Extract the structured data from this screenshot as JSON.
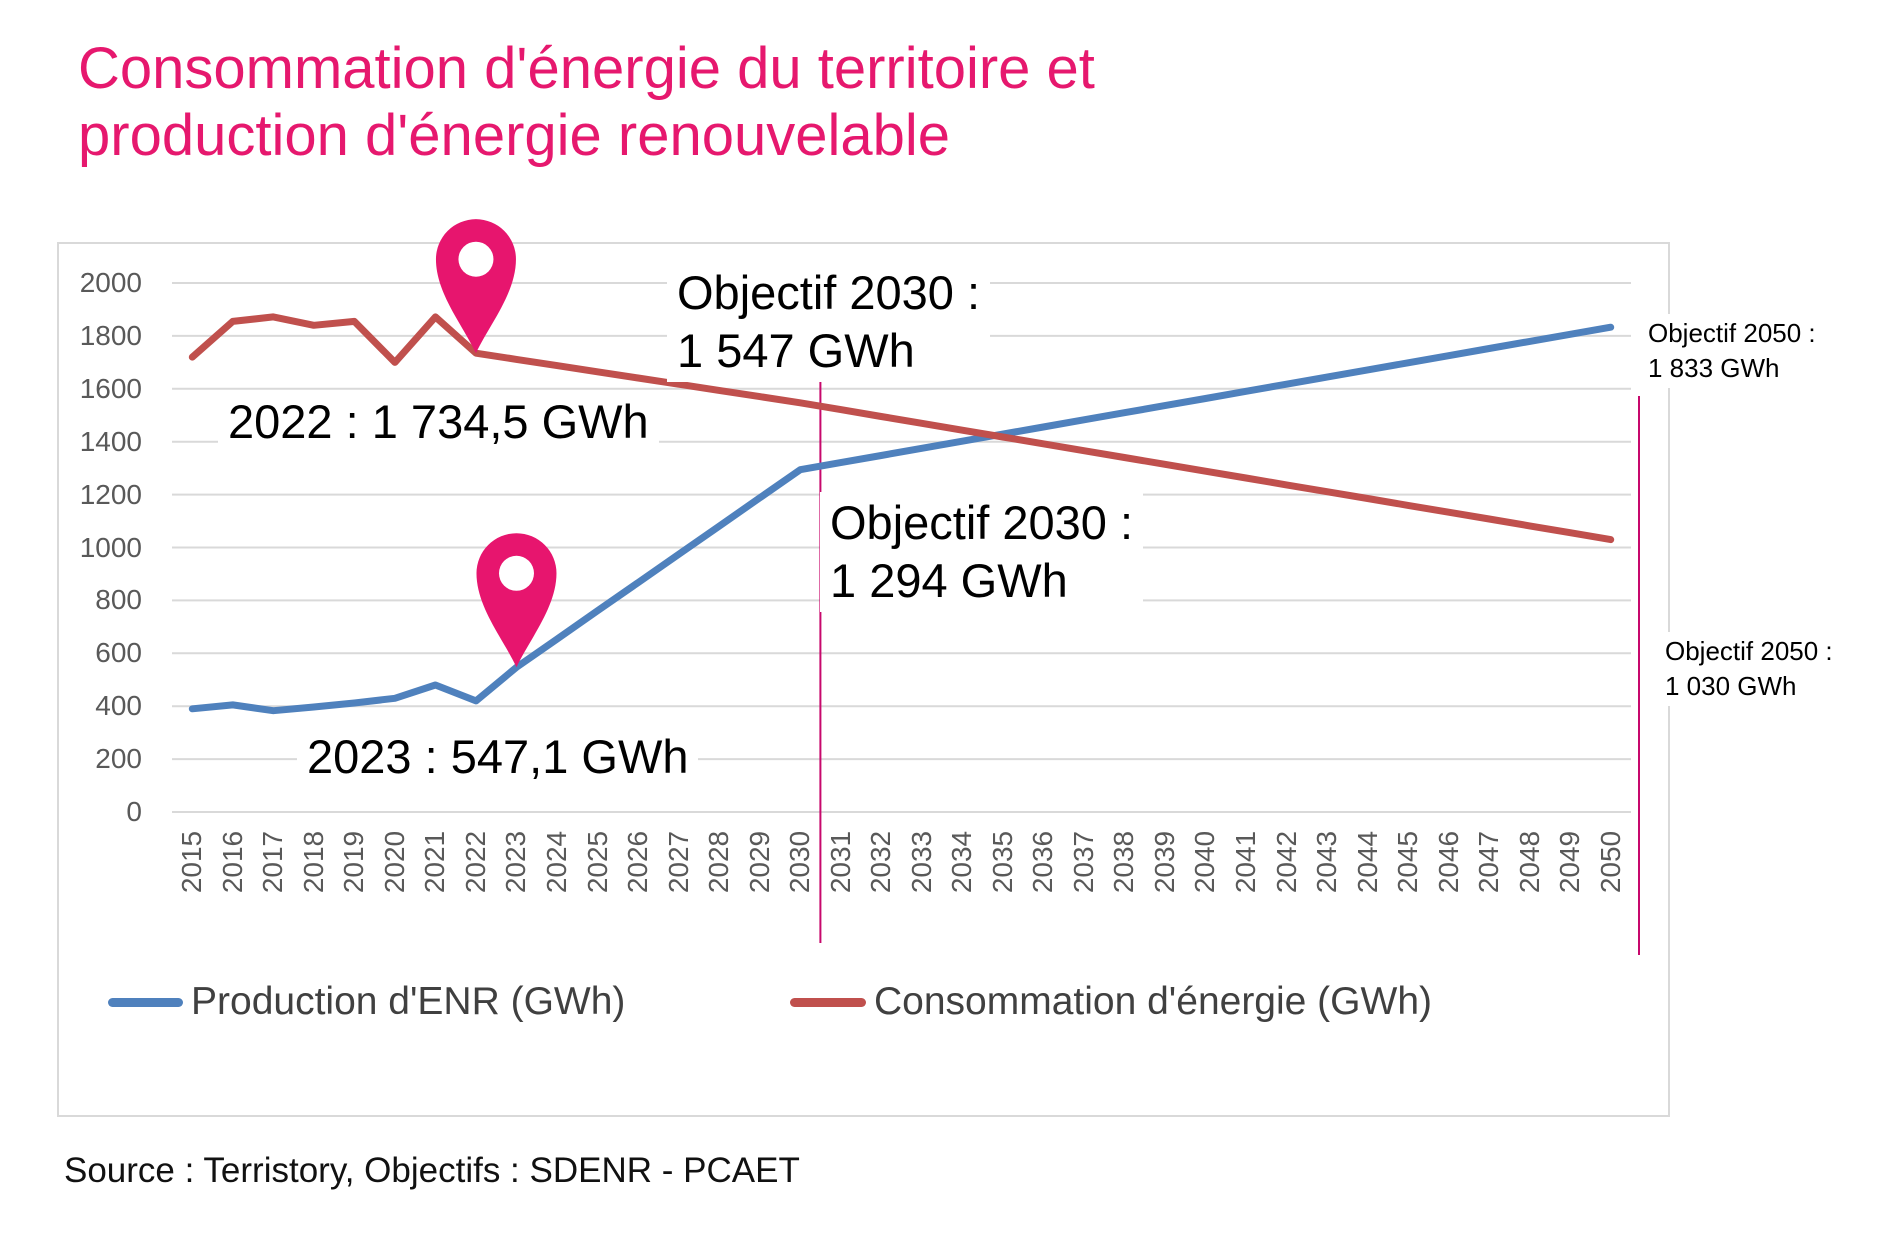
{
  "title": {
    "line1": "Consommation d'énergie du territoire et",
    "line2": "production d'énergie renouvelable"
  },
  "source": "Source : Terristory, Objectifs : SDENR - PCAET",
  "colors": {
    "title_accent": "#e6186e",
    "marker_pin": "#e7156e",
    "reference_line": "#c7086c",
    "gridline": "#d9d9d9",
    "axis_text": "#595959",
    "legend_text": "#404040"
  },
  "legend": [
    {
      "label": "Production d'ENR (GWh)",
      "color": "#4f81bd"
    },
    {
      "label": "Consommation d'énergie (GWh)",
      "color": "#c0504d"
    }
  ],
  "chart_data": {
    "type": "line",
    "x": [
      2015,
      2016,
      2017,
      2018,
      2019,
      2020,
      2021,
      2022,
      2023,
      2024,
      2025,
      2026,
      2027,
      2028,
      2029,
      2030,
      2031,
      2032,
      2033,
      2034,
      2035,
      2036,
      2037,
      2038,
      2039,
      2040,
      2041,
      2042,
      2043,
      2044,
      2045,
      2046,
      2047,
      2048,
      2049,
      2050
    ],
    "series": [
      {
        "key": "production",
        "name": "Production d'ENR (GWh)",
        "color": "#4f81bd",
        "values": [
          390,
          405,
          383,
          397,
          412,
          430,
          480,
          420,
          547.1,
          653.8,
          760.5,
          867.2,
          973.9,
          1080.7,
          1187.4,
          1294,
          1321,
          1347.9,
          1374.9,
          1401.8,
          1428.8,
          1455.7,
          1482.7,
          1509.6,
          1536.6,
          1563.5,
          1590.5,
          1617.4,
          1644.4,
          1671.3,
          1698.3,
          1725.2,
          1752.2,
          1779.1,
          1806.1,
          1833
        ]
      },
      {
        "key": "consommation",
        "name": "Consommation d'énergie (GWh)",
        "color": "#c0504d",
        "values": [
          1720,
          1855,
          1872,
          1840,
          1855,
          1700,
          1872,
          1734.5,
          1711.1,
          1687.6,
          1664.2,
          1640.8,
          1617.3,
          1593.9,
          1570.4,
          1547,
          1521.2,
          1495.3,
          1469.5,
          1443.6,
          1417.8,
          1391.9,
          1366.1,
          1340.2,
          1314.4,
          1288.5,
          1262.7,
          1236.8,
          1211,
          1185.1,
          1159.3,
          1133.4,
          1107.6,
          1081.7,
          1055.9,
          1030
        ]
      }
    ],
    "ylim": [
      0,
      2000
    ],
    "yticks": [
      0,
      200,
      400,
      600,
      800,
      1000,
      1200,
      1400,
      1600,
      1800,
      2000
    ],
    "grid": "horizontal",
    "legend_position": "bottom-inside",
    "markers": [
      {
        "series": "consommation",
        "year": 2022
      },
      {
        "series": "production",
        "year": 2023
      }
    ],
    "reference_lines": [
      {
        "id": "objective-2030",
        "after_year": 2030
      },
      {
        "id": "objective-2050",
        "after_year": 2050
      }
    ],
    "annotations": {
      "cons_2022": {
        "text": "2022 : 1 734,5 GWh"
      },
      "prod_2023": {
        "text": "2023 : 547,1 GWh"
      },
      "obj2030_cons": {
        "line1": "Objectif 2030 :",
        "line2": "1 547 GWh"
      },
      "obj2030_prod": {
        "line1": "Objectif 2030 :",
        "line2": "1 294 GWh"
      },
      "obj2050_prod": {
        "line1": "Objectif 2050 :",
        "line2": "1 833 GWh"
      },
      "obj2050_cons": {
        "line1": "Objectif 2050 :",
        "line2": "1 030 GWh"
      }
    }
  }
}
